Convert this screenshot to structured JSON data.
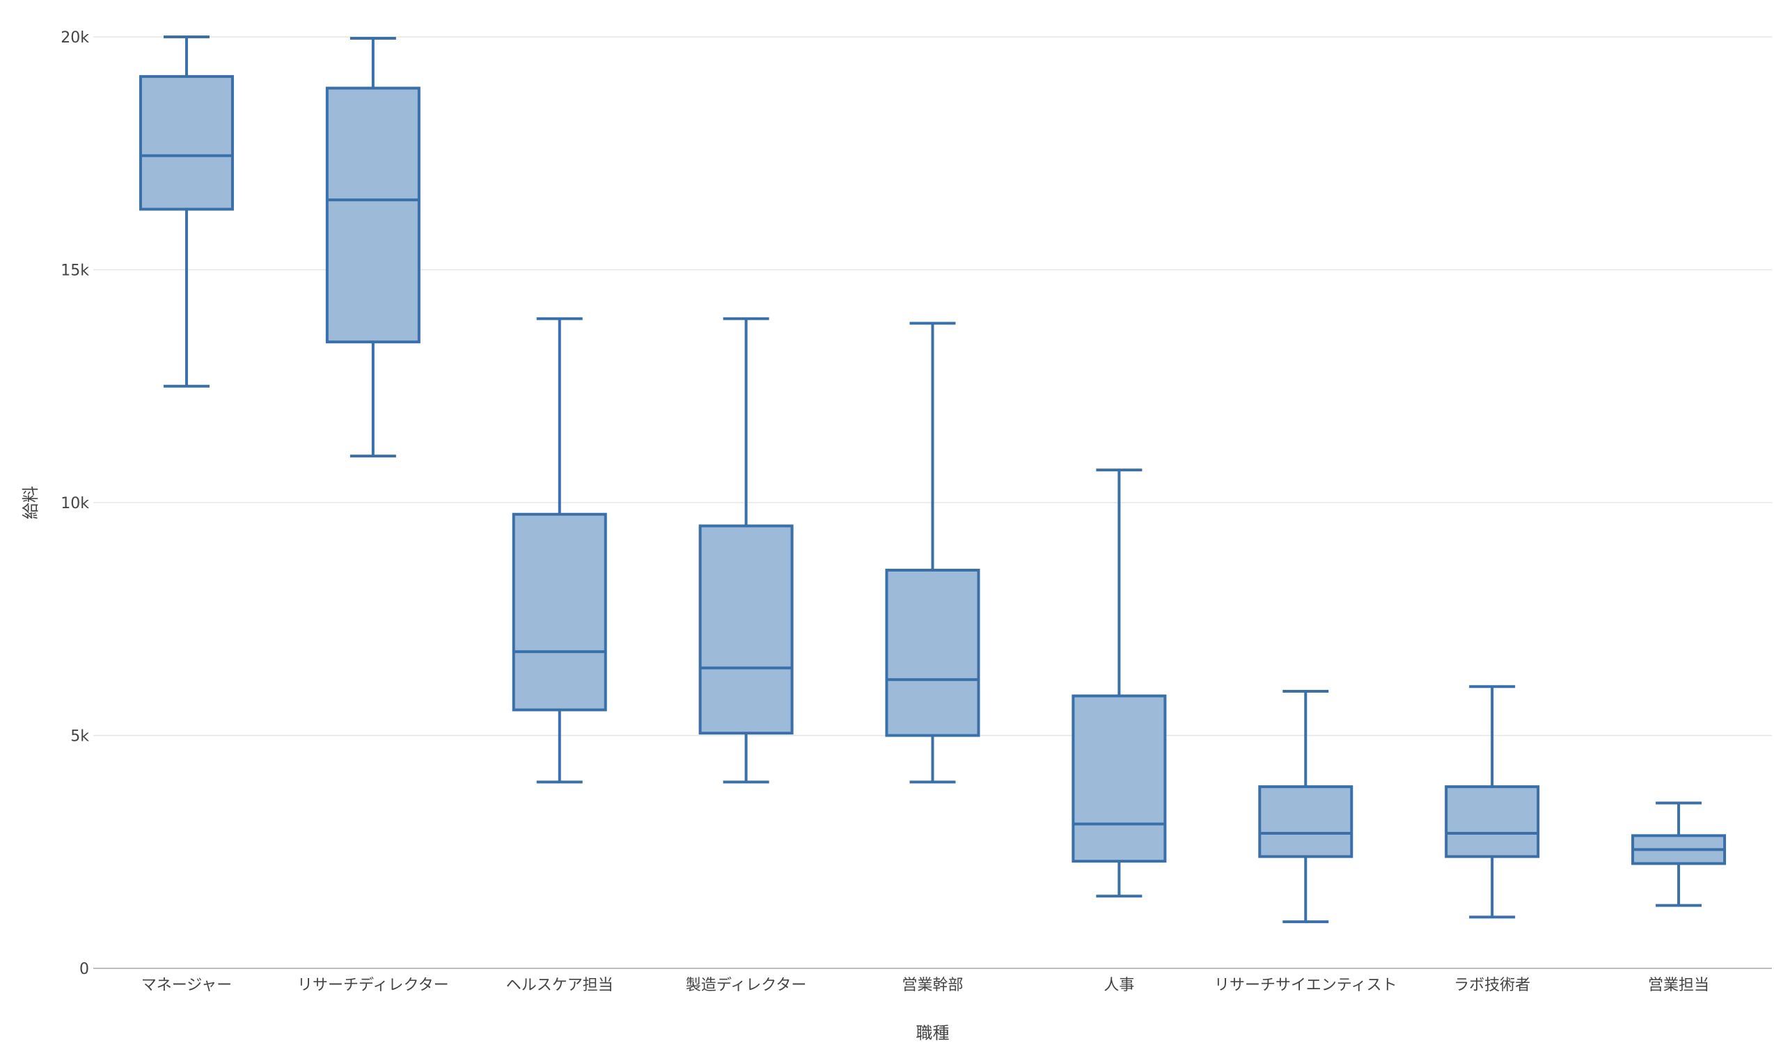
{
  "chart_data": {
    "type": "box",
    "xlabel": "職種",
    "ylabel": "給料",
    "ylim": [
      0,
      20000
    ],
    "yticks": [
      {
        "value": 0,
        "label": "0"
      },
      {
        "value": 5000,
        "label": "5k"
      },
      {
        "value": 10000,
        "label": "10k"
      },
      {
        "value": 15000,
        "label": "15k"
      },
      {
        "value": 20000,
        "label": "20k"
      }
    ],
    "grid": true,
    "categories": [
      "マネージャー",
      "リサーチディレクター",
      "ヘルスケア担当",
      "製造ディレクター",
      "営業幹部",
      "人事",
      "リサーチサイエンティスト",
      "ラボ技術者",
      "営業担当"
    ],
    "boxes": [
      {
        "category": "マネージャー",
        "min": 12500,
        "q1": 16300,
        "median": 17450,
        "q3": 19150,
        "max": 20000
      },
      {
        "category": "リサーチディレクター",
        "min": 11000,
        "q1": 13450,
        "median": 16500,
        "q3": 18900,
        "max": 19970
      },
      {
        "category": "ヘルスケア担当",
        "min": 4000,
        "q1": 5550,
        "median": 6800,
        "q3": 9750,
        "max": 13950
      },
      {
        "category": "製造ディレクター",
        "min": 4000,
        "q1": 5050,
        "median": 6450,
        "q3": 9500,
        "max": 13950
      },
      {
        "category": "営業幹部",
        "min": 4000,
        "q1": 5000,
        "median": 6200,
        "q3": 8550,
        "max": 13850
      },
      {
        "category": "人事",
        "min": 1550,
        "q1": 2300,
        "median": 3100,
        "q3": 5850,
        "max": 10700
      },
      {
        "category": "リサーチサイエンティスト",
        "min": 1000,
        "q1": 2400,
        "median": 2900,
        "q3": 3900,
        "max": 5950
      },
      {
        "category": "ラボ技術者",
        "min": 1100,
        "q1": 2400,
        "median": 2900,
        "q3": 3900,
        "max": 6050
      },
      {
        "category": "営業担当",
        "min": 1350,
        "q1": 2250,
        "median": 2550,
        "q3": 2850,
        "max": 3550
      }
    ],
    "colors": {
      "box_fill": "#9dbad8",
      "box_stroke": "#3a70aa",
      "grid": "#e6e6e6",
      "text": "#444444"
    }
  }
}
